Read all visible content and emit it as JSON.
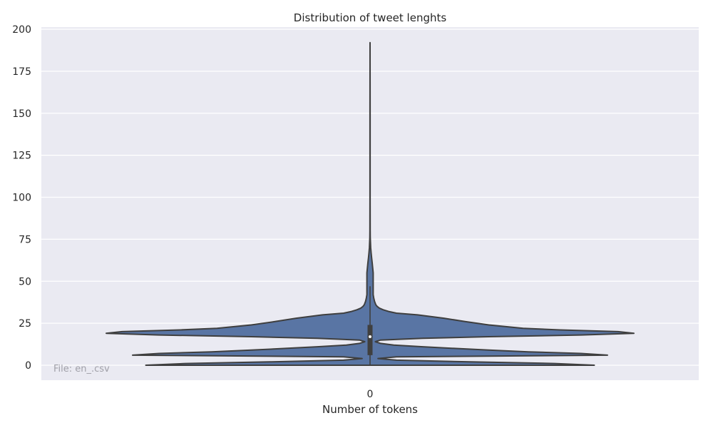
{
  "chart_data": {
    "type": "violin",
    "title": "Distribution of tweet lenghts",
    "xlabel": "Number of tokens",
    "ylabel": "",
    "categories": [
      "0"
    ],
    "ylim": [
      -8,
      202
    ],
    "yticks": [
      0,
      25,
      50,
      75,
      100,
      125,
      150,
      175,
      200
    ],
    "grid": true,
    "annotation": "File: en_.csv",
    "colors": {
      "background": "#eaeaf2",
      "violin_fill": "#5975a4",
      "violin_edge": "#3f3f3f",
      "grid": "#ffffff"
    },
    "violin": {
      "density_profile": [
        [
          0,
          0.85
        ],
        [
          1,
          0.7
        ],
        [
          2,
          0.38
        ],
        [
          3,
          0.1
        ],
        [
          4,
          0.03
        ],
        [
          5,
          0.1
        ],
        [
          6,
          0.9
        ],
        [
          7,
          0.8
        ],
        [
          8,
          0.6
        ],
        [
          9,
          0.45
        ],
        [
          10,
          0.32
        ],
        [
          11,
          0.2
        ],
        [
          12,
          0.09
        ],
        [
          13,
          0.04
        ],
        [
          14,
          0.02
        ],
        [
          15,
          0.04
        ],
        [
          16,
          0.2
        ],
        [
          17,
          0.45
        ],
        [
          18,
          0.8
        ],
        [
          19,
          1.0
        ],
        [
          20,
          0.94
        ],
        [
          21,
          0.72
        ],
        [
          22,
          0.58
        ],
        [
          24,
          0.45
        ],
        [
          26,
          0.36
        ],
        [
          28,
          0.28
        ],
        [
          30,
          0.18
        ],
        [
          31,
          0.1
        ],
        [
          32,
          0.07
        ],
        [
          33,
          0.05
        ],
        [
          34,
          0.035
        ],
        [
          35,
          0.027
        ],
        [
          36,
          0.022
        ],
        [
          38,
          0.017
        ],
        [
          40,
          0.014
        ],
        [
          42,
          0.012
        ],
        [
          45,
          0.012
        ],
        [
          50,
          0.012
        ],
        [
          55,
          0.012
        ],
        [
          58,
          0.01
        ],
        [
          61,
          0.008
        ],
        [
          64,
          0.006
        ],
        [
          67,
          0.004
        ],
        [
          70,
          0.0025
        ],
        [
          73,
          0.0015
        ],
        [
          76,
          0.0008
        ],
        [
          80,
          0.0006
        ],
        [
          100,
          0.0004
        ],
        [
          150,
          0.0003
        ],
        [
          192,
          0.0
        ]
      ],
      "whisker_low": 0,
      "whisker_high": 47,
      "q1": 6,
      "q3": 24,
      "median": 17
    }
  }
}
